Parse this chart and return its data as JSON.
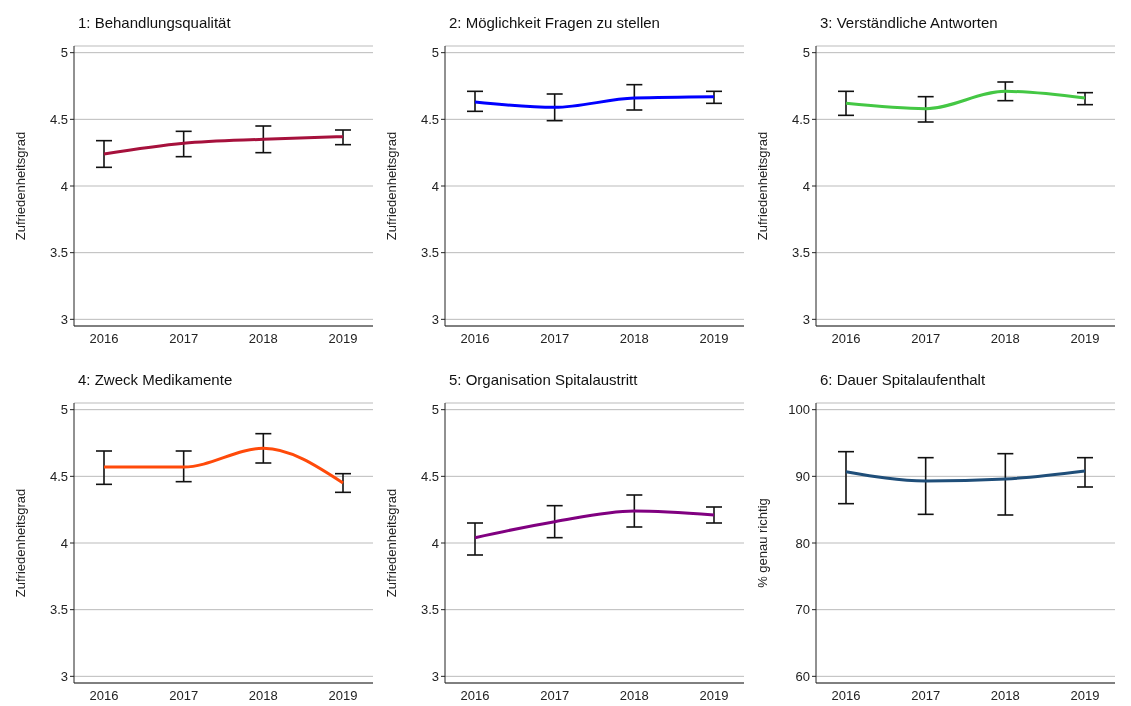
{
  "chart_data": [
    {
      "type": "line",
      "title": "1: Behandlungsqualität",
      "ylabel": "Zufriedenheitsgrad",
      "categories": [
        "2016",
        "2017",
        "2018",
        "2019"
      ],
      "ylim": [
        2.95,
        5.05
      ],
      "yticks": [
        3,
        3.5,
        4,
        4.5,
        5
      ],
      "grid": "y",
      "legend": false,
      "series": [
        {
          "color": "#a6113c",
          "values": [
            4.24,
            4.32,
            4.35,
            4.37
          ],
          "errors": [
            [
              4.14,
              4.34
            ],
            [
              4.22,
              4.41
            ],
            [
              4.25,
              4.45
            ],
            [
              4.31,
              4.42
            ]
          ]
        }
      ]
    },
    {
      "type": "line",
      "title": "2: Möglichkeit Fragen zu stellen",
      "ylabel": "Zufriedenheitsgrad",
      "categories": [
        "2016",
        "2017",
        "2018",
        "2019"
      ],
      "ylim": [
        2.95,
        5.05
      ],
      "yticks": [
        3,
        3.5,
        4,
        4.5,
        5
      ],
      "grid": "y",
      "legend": false,
      "series": [
        {
          "color": "#0000ff",
          "values": [
            4.63,
            4.59,
            4.66,
            4.67
          ],
          "errors": [
            [
              4.56,
              4.71
            ],
            [
              4.49,
              4.69
            ],
            [
              4.57,
              4.76
            ],
            [
              4.62,
              4.71
            ]
          ]
        }
      ]
    },
    {
      "type": "line",
      "title": "3: Verständliche Antworten",
      "ylabel": "Zufriedenheitsgrad",
      "categories": [
        "2016",
        "2017",
        "2018",
        "2019"
      ],
      "ylim": [
        2.95,
        5.05
      ],
      "yticks": [
        3,
        3.5,
        4,
        4.5,
        5
      ],
      "grid": "y",
      "legend": false,
      "series": [
        {
          "color": "#44c744",
          "values": [
            4.62,
            4.58,
            4.71,
            4.66
          ],
          "errors": [
            [
              4.53,
              4.71
            ],
            [
              4.48,
              4.67
            ],
            [
              4.64,
              4.78
            ],
            [
              4.61,
              4.7
            ]
          ]
        }
      ]
    },
    {
      "type": "line",
      "title": "4: Zweck Medikamente",
      "ylabel": "Zufriedenheitsgrad",
      "categories": [
        "2016",
        "2017",
        "2018",
        "2019"
      ],
      "ylim": [
        2.95,
        5.05
      ],
      "yticks": [
        3,
        3.5,
        4,
        4.5,
        5
      ],
      "grid": "y",
      "legend": false,
      "series": [
        {
          "color": "#ff4a0a",
          "values": [
            4.57,
            4.57,
            4.71,
            4.45
          ],
          "errors": [
            [
              4.44,
              4.69
            ],
            [
              4.46,
              4.69
            ],
            [
              4.6,
              4.82
            ],
            [
              4.38,
              4.52
            ]
          ]
        }
      ]
    },
    {
      "type": "line",
      "title": "5: Organisation Spitalaustritt",
      "ylabel": "Zufriedenheitsgrad",
      "categories": [
        "2016",
        "2017",
        "2018",
        "2019"
      ],
      "ylim": [
        2.95,
        5.05
      ],
      "yticks": [
        3,
        3.5,
        4,
        4.5,
        5
      ],
      "grid": "y",
      "legend": false,
      "series": [
        {
          "color": "#800080",
          "values": [
            4.04,
            4.16,
            4.24,
            4.21
          ],
          "errors": [
            [
              3.91,
              4.15
            ],
            [
              4.04,
              4.28
            ],
            [
              4.12,
              4.36
            ],
            [
              4.15,
              4.27
            ]
          ]
        }
      ]
    },
    {
      "type": "line",
      "title": "6: Dauer Spitalaufenthalt",
      "ylabel": "% genau richtig",
      "categories": [
        "2016",
        "2017",
        "2018",
        "2019"
      ],
      "ylim": [
        59,
        101
      ],
      "yticks": [
        60,
        70,
        80,
        90,
        100
      ],
      "grid": "y",
      "legend": false,
      "series": [
        {
          "color": "#1f4e79",
          "values": [
            90.7,
            89.3,
            89.6,
            90.8
          ],
          "errors": [
            [
              85.9,
              93.7
            ],
            [
              84.3,
              92.8
            ],
            [
              84.2,
              93.4
            ],
            [
              88.4,
              92.8
            ]
          ]
        }
      ]
    }
  ]
}
